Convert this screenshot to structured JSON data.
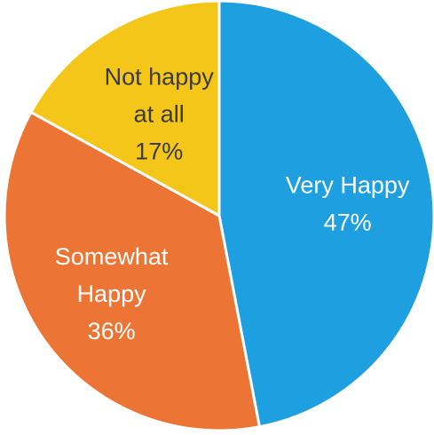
{
  "chart_data": {
    "type": "pie",
    "title": "",
    "slices": [
      {
        "category": "Very Happy",
        "label_lines": [
          "Very Happy",
          "47%"
        ],
        "value": 47,
        "color": "#1E9FE0",
        "label_color": "#FFFFFF"
      },
      {
        "category": "Somewhat Happy",
        "label_lines": [
          "Somewhat",
          "Happy",
          "36%"
        ],
        "value": 36,
        "color": "#EC7535",
        "label_color": "#FFFFFF"
      },
      {
        "category": "Not happy at all",
        "label_lines": [
          "Not happy",
          "at all",
          "17%"
        ],
        "value": 17,
        "color": "#F4C619",
        "label_color": "#3B3B3B"
      }
    ],
    "start_angle": "12 o'clock",
    "direction": "clockwise",
    "legend": "none"
  }
}
